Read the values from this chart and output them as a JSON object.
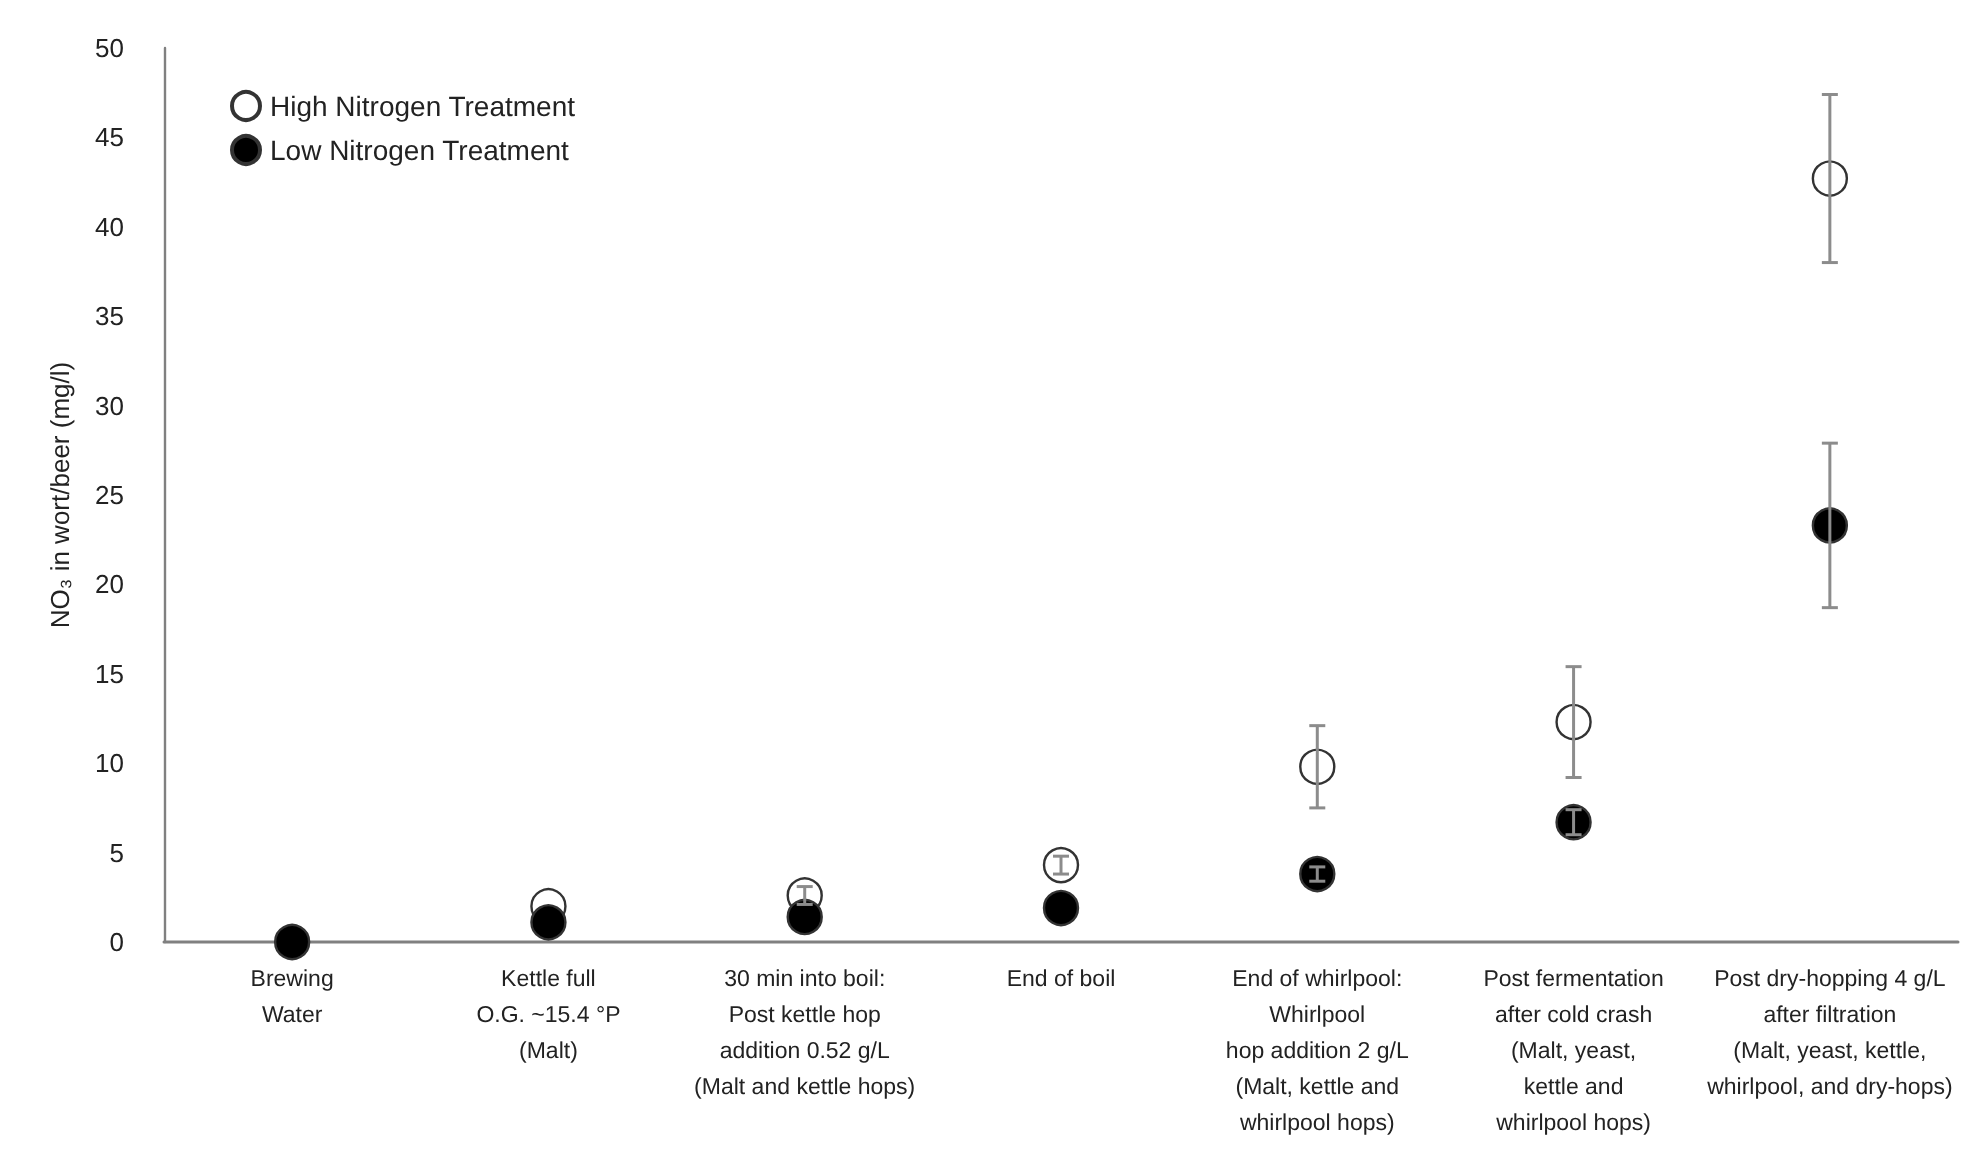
{
  "chart_data": {
    "type": "scatter",
    "ylabel": "NO₃ in wort/beer (mg/l)",
    "categories": [
      "Brewing\nWater",
      "Kettle full\nO.G. ~15.4 °P\n(Malt)",
      "30 min into boil:\nPost kettle hop\naddition 0.52 g/L\n(Malt and kettle hops)",
      "End of boil",
      "End of whirlpool:\nWhirlpool\nhop addition 2 g/L\n(Malt, kettle and\nwhirlpool hops)",
      "Post fermentation\nafter cold crash\n(Malt, yeast,\nkettle and\nwhirlpool hops)",
      "Post dry-hopping 4 g/L\nafter filtration\n(Malt, yeast, kettle,\nwhirlpool, and dry-hops)"
    ],
    "series": [
      {
        "name": "High Nitrogen Treatment",
        "color": "#ffffff",
        "values": [
          null,
          2.0,
          2.6,
          4.3,
          9.8,
          12.3,
          42.7
        ],
        "errors": [
          null,
          null,
          0.5,
          0.5,
          2.3,
          3.1,
          4.7
        ]
      },
      {
        "name": "Low Nitrogen Treatment",
        "color": "#000000",
        "values": [
          0,
          1.1,
          1.4,
          1.9,
          3.8,
          6.7,
          23.3
        ],
        "errors": [
          null,
          null,
          null,
          null,
          0.4,
          0.7,
          4.6
        ]
      }
    ],
    "ylim": [
      0,
      50
    ],
    "yticks": [
      0,
      5,
      10,
      15,
      20,
      25,
      30,
      35,
      40,
      45,
      50
    ],
    "grid": false,
    "legend": "top left",
    "marker": "circle"
  }
}
